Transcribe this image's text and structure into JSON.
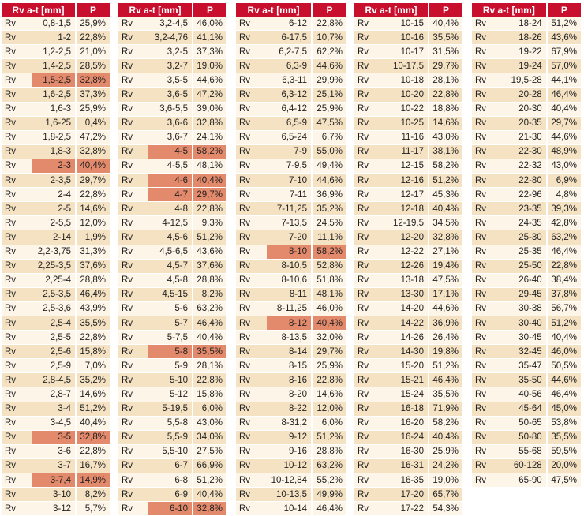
{
  "headers": {
    "range": "Rv a-t [mm]",
    "p": "P"
  },
  "row_prefix": "Rv",
  "colors": {
    "header": "#c8102e",
    "row_light": "#fdf5e7",
    "row_dark": "#f5e2c3",
    "highlight": "#e48a6c"
  },
  "tables": [
    {
      "rows": [
        {
          "range": "0,8-1,5",
          "p": "25,9%"
        },
        {
          "range": "1-2",
          "p": "22,8%"
        },
        {
          "range": "1,2-2,5",
          "p": "21,0%"
        },
        {
          "range": "1,4-2,5",
          "p": "28,5%"
        },
        {
          "range": "1,5-2,5",
          "p": "32,8%",
          "hl": true
        },
        {
          "range": "1,6-2,5",
          "p": "37,3%"
        },
        {
          "range": "1,6-3",
          "p": "25,9%"
        },
        {
          "range": "1,6-25",
          "p": "0,4%"
        },
        {
          "range": "1,8-2,5",
          "p": "47,2%"
        },
        {
          "range": "1,8-3",
          "p": "32,8%"
        },
        {
          "range": "2-3",
          "p": "40,4%",
          "hl": true
        },
        {
          "range": "2-3,5",
          "p": "29,7%"
        },
        {
          "range": "2-4",
          "p": "22,8%"
        },
        {
          "range": "2-5",
          "p": "14,6%"
        },
        {
          "range": "2-5,5",
          "p": "12,0%"
        },
        {
          "range": "2-14",
          "p": "1,9%"
        },
        {
          "range": "2,2-3,75",
          "p": "31,3%"
        },
        {
          "range": "2,25-3,5",
          "p": "37,6%"
        },
        {
          "range": "2,25-4",
          "p": "28,8%"
        },
        {
          "range": "2,5-3,5",
          "p": "46,4%"
        },
        {
          "range": "2,5-3,6",
          "p": "43,9%"
        },
        {
          "range": "2,5-4",
          "p": "35,5%"
        },
        {
          "range": "2,5-5",
          "p": "22,8%"
        },
        {
          "range": "2,5-6",
          "p": "15,8%"
        },
        {
          "range": "2,5-9",
          "p": "7,0%"
        },
        {
          "range": "2,8-4,5",
          "p": "35,2%"
        },
        {
          "range": "2,8-7",
          "p": "14,6%"
        },
        {
          "range": "3-4",
          "p": "51,2%"
        },
        {
          "range": "3-4,5",
          "p": "40,4%"
        },
        {
          "range": "3-5",
          "p": "32,8%",
          "hl": true
        },
        {
          "range": "3-6",
          "p": "22,8%"
        },
        {
          "range": "3-7",
          "p": "16,7%"
        },
        {
          "range": "3-7,4",
          "p": "14,9%",
          "hl": true
        },
        {
          "range": "3-10",
          "p": "8,2%"
        },
        {
          "range": "3-12",
          "p": "5,7%"
        }
      ]
    },
    {
      "rows": [
        {
          "range": "3,2-4,5",
          "p": "46,0%"
        },
        {
          "range": "3,2-4,76",
          "p": "41,1%"
        },
        {
          "range": "3,2-5",
          "p": "37,3%"
        },
        {
          "range": "3,2-7",
          "p": "19,0%"
        },
        {
          "range": "3,5-5",
          "p": "44,6%"
        },
        {
          "range": "3,6-5",
          "p": "47,2%"
        },
        {
          "range": "3,6-5,5",
          "p": "39,0%"
        },
        {
          "range": "3,6-6",
          "p": "32,8%"
        },
        {
          "range": "3,6-7",
          "p": "24,1%"
        },
        {
          "range": "4-5",
          "p": "58,2%",
          "hl": true
        },
        {
          "range": "4-5,5",
          "p": "48,1%"
        },
        {
          "range": "4-6",
          "p": "40,4%",
          "hl": true
        },
        {
          "range": "4-7",
          "p": "29,7%",
          "hl": true
        },
        {
          "range": "4-8",
          "p": "22,8%"
        },
        {
          "range": "4-12,5",
          "p": "9,3%"
        },
        {
          "range": "4,5-6",
          "p": "51,2%"
        },
        {
          "range": "4,5-6,5",
          "p": "43,6%"
        },
        {
          "range": "4,5-7",
          "p": "37,6%"
        },
        {
          "range": "4,5-8",
          "p": "28,8%"
        },
        {
          "range": "4,5-15",
          "p": "8,2%"
        },
        {
          "range": "5-6",
          "p": "63,2%"
        },
        {
          "range": "5-7",
          "p": "46,4%"
        },
        {
          "range": "5-7,5",
          "p": "40,4%"
        },
        {
          "range": "5-8",
          "p": "35,5%",
          "hl": true
        },
        {
          "range": "5-9",
          "p": "28,1%"
        },
        {
          "range": "5-10",
          "p": "22,8%"
        },
        {
          "range": "5-12",
          "p": "15,8%"
        },
        {
          "range": "5-19,5",
          "p": "6,0%"
        },
        {
          "range": "5,5-8",
          "p": "43,0%"
        },
        {
          "range": "5,5-9",
          "p": "34,0%"
        },
        {
          "range": "5,5-10",
          "p": "27,5%"
        },
        {
          "range": "6-7",
          "p": "66,9%"
        },
        {
          "range": "6-8",
          "p": "51,2%"
        },
        {
          "range": "6-9",
          "p": "40,4%"
        },
        {
          "range": "6-10",
          "p": "32,8%",
          "hl": true
        }
      ]
    },
    {
      "rows": [
        {
          "range": "6-12",
          "p": "22,8%"
        },
        {
          "range": "6-17,5",
          "p": "10,7%"
        },
        {
          "range": "6,2-7,5",
          "p": "62,2%"
        },
        {
          "range": "6,3-9",
          "p": "44,6%"
        },
        {
          "range": "6,3-11",
          "p": "29,9%"
        },
        {
          "range": "6,3-12",
          "p": "25,1%"
        },
        {
          "range": "6,4-12",
          "p": "25,9%"
        },
        {
          "range": "6,5-9",
          "p": "47,5%"
        },
        {
          "range": "6,5-24",
          "p": "6,7%"
        },
        {
          "range": "7-9",
          "p": "55,0%"
        },
        {
          "range": "7-9,5",
          "p": "49,4%"
        },
        {
          "range": "7-10",
          "p": "44,6%"
        },
        {
          "range": "7-11",
          "p": "36,9%"
        },
        {
          "range": "7-11,25",
          "p": "35,2%"
        },
        {
          "range": "7-13,5",
          "p": "24,5%"
        },
        {
          "range": "7-20",
          "p": "11,1%"
        },
        {
          "range": "8-10",
          "p": "58,2%",
          "hl": true
        },
        {
          "range": "8-10,5",
          "p": "52,8%"
        },
        {
          "range": "8-10,6",
          "p": "51,8%"
        },
        {
          "range": "8-11",
          "p": "48,1%"
        },
        {
          "range": "8-11,25",
          "p": "46,0%"
        },
        {
          "range": "8-12",
          "p": "40,4%",
          "hl": true
        },
        {
          "range": "8-13,5",
          "p": "32,0%"
        },
        {
          "range": "8-14",
          "p": "29,7%"
        },
        {
          "range": "8-15",
          "p": "25,9%"
        },
        {
          "range": "8-16",
          "p": "22,8%"
        },
        {
          "range": "8-20",
          "p": "14,6%"
        },
        {
          "range": "8-22",
          "p": "12,0%"
        },
        {
          "range": "8-31,2",
          "p": "6,0%"
        },
        {
          "range": "9-12",
          "p": "51,2%"
        },
        {
          "range": "9-16",
          "p": "28,8%"
        },
        {
          "range": "10-12",
          "p": "63,2%"
        },
        {
          "range": "10-12,84",
          "p": "55,2%"
        },
        {
          "range": "10-13,5",
          "p": "49,9%"
        },
        {
          "range": "10-14",
          "p": "46,4%"
        }
      ]
    },
    {
      "rows": [
        {
          "range": "10-15",
          "p": "40,4%"
        },
        {
          "range": "10-16",
          "p": "35,5%"
        },
        {
          "range": "10-17",
          "p": "31,5%"
        },
        {
          "range": "10-17,5",
          "p": "29,7%"
        },
        {
          "range": "10-18",
          "p": "28,1%"
        },
        {
          "range": "10-20",
          "p": "22,8%"
        },
        {
          "range": "10-22",
          "p": "18,8%"
        },
        {
          "range": "10-25",
          "p": "14,6%"
        },
        {
          "range": "11-16",
          "p": "43,0%"
        },
        {
          "range": "11-17",
          "p": "38,1%"
        },
        {
          "range": "12-15",
          "p": "58,2%"
        },
        {
          "range": "12-16",
          "p": "51,2%"
        },
        {
          "range": "12-17",
          "p": "45,3%"
        },
        {
          "range": "12-18",
          "p": "40,4%"
        },
        {
          "range": "12-19,5",
          "p": "34,5%"
        },
        {
          "range": "12-20",
          "p": "32,8%"
        },
        {
          "range": "12-22",
          "p": "27,1%"
        },
        {
          "range": "12-26",
          "p": "19,4%"
        },
        {
          "range": "13-18",
          "p": "47,5%"
        },
        {
          "range": "13-30",
          "p": "17,1%"
        },
        {
          "range": "14-20",
          "p": "44,6%"
        },
        {
          "range": "14-22",
          "p": "36,9%"
        },
        {
          "range": "14-26",
          "p": "26,4%"
        },
        {
          "range": "14-30",
          "p": "19,8%"
        },
        {
          "range": "15-20",
          "p": "51,2%"
        },
        {
          "range": "15-21",
          "p": "46,4%"
        },
        {
          "range": "15-24",
          "p": "35,5%"
        },
        {
          "range": "16-18",
          "p": "71,9%"
        },
        {
          "range": "16-20",
          "p": "58,2%"
        },
        {
          "range": "16-24",
          "p": "40,4%"
        },
        {
          "range": "16-30",
          "p": "25,9%"
        },
        {
          "range": "16-31",
          "p": "24,2%"
        },
        {
          "range": "16-35",
          "p": "19,0%"
        },
        {
          "range": "17-20",
          "p": "65,7%"
        },
        {
          "range": "17-22",
          "p": "54,3%"
        }
      ]
    },
    {
      "rows": [
        {
          "range": "18-24",
          "p": "51,2%"
        },
        {
          "range": "18-26",
          "p": "43,6%"
        },
        {
          "range": "19-22",
          "p": "67,9%"
        },
        {
          "range": "19-24",
          "p": "57,0%"
        },
        {
          "range": "19,5-28",
          "p": "44,1%"
        },
        {
          "range": "20-28",
          "p": "46,4%"
        },
        {
          "range": "20-30",
          "p": "40,4%"
        },
        {
          "range": "20-35",
          "p": "29,7%"
        },
        {
          "range": "21-30",
          "p": "44,6%"
        },
        {
          "range": "22-30",
          "p": "48,9%"
        },
        {
          "range": "22-32",
          "p": "43,0%"
        },
        {
          "range": "22-80",
          "p": "6,9%"
        },
        {
          "range": "22-96",
          "p": "4,8%"
        },
        {
          "range": "23-35",
          "p": "39,3%"
        },
        {
          "range": "24-35",
          "p": "42,8%"
        },
        {
          "range": "25-30",
          "p": "63,2%"
        },
        {
          "range": "25-35",
          "p": "46,4%"
        },
        {
          "range": "25-50",
          "p": "22,8%"
        },
        {
          "range": "26-40",
          "p": "38,4%"
        },
        {
          "range": "29-45",
          "p": "37,8%"
        },
        {
          "range": "30-38",
          "p": "56,7%"
        },
        {
          "range": "30-40",
          "p": "51,2%"
        },
        {
          "range": "30-45",
          "p": "40,4%"
        },
        {
          "range": "32-45",
          "p": "46,0%"
        },
        {
          "range": "35-47",
          "p": "50,5%"
        },
        {
          "range": "35-50",
          "p": "44,6%"
        },
        {
          "range": "40-56",
          "p": "46,4%"
        },
        {
          "range": "45-64",
          "p": "45,0%"
        },
        {
          "range": "50-65",
          "p": "53,8%"
        },
        {
          "range": "50-80",
          "p": "35,5%"
        },
        {
          "range": "55-68",
          "p": "59,5%"
        },
        {
          "range": "60-128",
          "p": "20,0%"
        },
        {
          "range": "65-90",
          "p": "47,5%"
        }
      ]
    }
  ]
}
